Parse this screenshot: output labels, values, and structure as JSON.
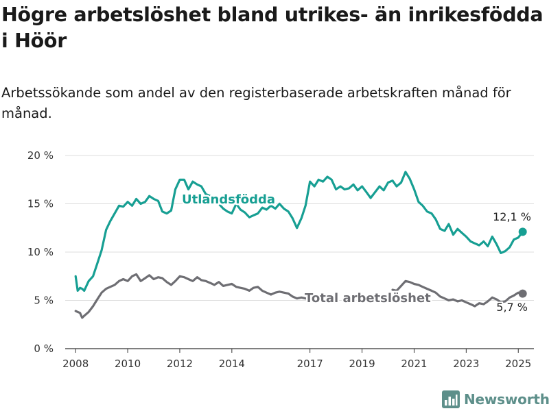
{
  "title": "Högre arbetslöshet bland utrikes- än inrikesfödda i Höör",
  "subtitle": "Arbetssökande som andel av den registerbaserade arbetskraften månad för månad.",
  "logo_text": "Newsworthy",
  "colors": {
    "utland": "#179f93",
    "total": "#6e6e73",
    "grid": "#dcdcdc",
    "axis": "#333333"
  },
  "chart_data": {
    "type": "line",
    "title": "Högre arbetslöshet bland utrikes- än inrikesfödda i Höör",
    "ylabel": "",
    "xlabel": "",
    "ylim": [
      0,
      20
    ],
    "xlim": [
      2007.6,
      2025.6
    ],
    "y_ticks": [
      0,
      5,
      10,
      15,
      20
    ],
    "y_tick_labels": [
      "0 %",
      "5 %",
      "10 %",
      "15 %",
      "20 %"
    ],
    "x_ticks": [
      2008,
      2010,
      2012,
      2014,
      2017,
      2019,
      2021,
      2023,
      2025
    ],
    "x_tick_labels": [
      "2008",
      "2010",
      "2012",
      "2014",
      "2017",
      "2019",
      "2021",
      "2023",
      "2025"
    ],
    "grid": true,
    "series": [
      {
        "name": "Utlandsfödda",
        "end_label": "12,1 %",
        "points": [
          [
            2008.0,
            7.5
          ],
          [
            2008.08,
            6.0
          ],
          [
            2008.17,
            6.3
          ],
          [
            2008.25,
            6.2
          ],
          [
            2008.33,
            6.0
          ],
          [
            2008.5,
            7.0
          ],
          [
            2008.67,
            7.5
          ],
          [
            2008.83,
            8.8
          ],
          [
            2009.0,
            10.2
          ],
          [
            2009.17,
            12.3
          ],
          [
            2009.33,
            13.2
          ],
          [
            2009.5,
            14.0
          ],
          [
            2009.67,
            14.8
          ],
          [
            2009.83,
            14.7
          ],
          [
            2010.0,
            15.2
          ],
          [
            2010.17,
            14.8
          ],
          [
            2010.33,
            15.5
          ],
          [
            2010.5,
            15.0
          ],
          [
            2010.67,
            15.2
          ],
          [
            2010.83,
            15.8
          ],
          [
            2011.0,
            15.5
          ],
          [
            2011.17,
            15.3
          ],
          [
            2011.33,
            14.2
          ],
          [
            2011.5,
            14.0
          ],
          [
            2011.67,
            14.3
          ],
          [
            2011.83,
            16.5
          ],
          [
            2012.0,
            17.5
          ],
          [
            2012.17,
            17.5
          ],
          [
            2012.33,
            16.5
          ],
          [
            2012.5,
            17.3
          ],
          [
            2012.67,
            17.0
          ],
          [
            2012.83,
            16.8
          ],
          [
            2013.0,
            16.0
          ],
          [
            2013.17,
            15.8
          ],
          [
            2013.33,
            15.2
          ],
          [
            2013.5,
            15.0
          ],
          [
            2013.67,
            14.5
          ],
          [
            2013.83,
            14.2
          ],
          [
            2014.0,
            14.0
          ],
          [
            2014.17,
            15.0
          ],
          [
            2014.33,
            14.4
          ],
          [
            2014.5,
            14.1
          ],
          [
            2014.67,
            13.6
          ],
          [
            2014.83,
            13.8
          ],
          [
            2015.0,
            14.0
          ],
          [
            2015.17,
            14.6
          ],
          [
            2015.33,
            14.4
          ],
          [
            2015.5,
            14.8
          ],
          [
            2015.67,
            14.5
          ],
          [
            2015.83,
            15.0
          ],
          [
            2016.0,
            14.5
          ],
          [
            2016.17,
            14.2
          ],
          [
            2016.33,
            13.5
          ],
          [
            2016.5,
            12.5
          ],
          [
            2016.67,
            13.5
          ],
          [
            2016.83,
            14.8
          ],
          [
            2017.0,
            17.3
          ],
          [
            2017.17,
            16.8
          ],
          [
            2017.33,
            17.5
          ],
          [
            2017.5,
            17.3
          ],
          [
            2017.67,
            17.8
          ],
          [
            2017.83,
            17.5
          ],
          [
            2018.0,
            16.5
          ],
          [
            2018.17,
            16.8
          ],
          [
            2018.33,
            16.5
          ],
          [
            2018.5,
            16.6
          ],
          [
            2018.67,
            17.0
          ],
          [
            2018.83,
            16.4
          ],
          [
            2019.0,
            16.8
          ],
          [
            2019.17,
            16.2
          ],
          [
            2019.33,
            15.6
          ],
          [
            2019.5,
            16.2
          ],
          [
            2019.67,
            16.8
          ],
          [
            2019.83,
            16.4
          ],
          [
            2020.0,
            17.2
          ],
          [
            2020.17,
            17.4
          ],
          [
            2020.33,
            16.8
          ],
          [
            2020.5,
            17.2
          ],
          [
            2020.67,
            18.3
          ],
          [
            2020.83,
            17.6
          ],
          [
            2021.0,
            16.5
          ],
          [
            2021.17,
            15.2
          ],
          [
            2021.33,
            14.8
          ],
          [
            2021.5,
            14.2
          ],
          [
            2021.67,
            14.0
          ],
          [
            2021.83,
            13.4
          ],
          [
            2022.0,
            12.4
          ],
          [
            2022.17,
            12.2
          ],
          [
            2022.33,
            12.9
          ],
          [
            2022.5,
            11.8
          ],
          [
            2022.67,
            12.4
          ],
          [
            2022.83,
            12.0
          ],
          [
            2023.0,
            11.6
          ],
          [
            2023.17,
            11.1
          ],
          [
            2023.33,
            10.9
          ],
          [
            2023.5,
            10.7
          ],
          [
            2023.67,
            11.1
          ],
          [
            2023.83,
            10.6
          ],
          [
            2024.0,
            11.6
          ],
          [
            2024.17,
            10.8
          ],
          [
            2024.33,
            9.9
          ],
          [
            2024.5,
            10.1
          ],
          [
            2024.67,
            10.5
          ],
          [
            2024.83,
            11.3
          ],
          [
            2025.0,
            11.5
          ],
          [
            2025.17,
            12.1
          ]
        ]
      },
      {
        "name": "Total arbetslöshet",
        "end_label": "5,7 %",
        "points": [
          [
            2008.0,
            3.9
          ],
          [
            2008.08,
            3.8
          ],
          [
            2008.17,
            3.7
          ],
          [
            2008.25,
            3.2
          ],
          [
            2008.33,
            3.4
          ],
          [
            2008.5,
            3.8
          ],
          [
            2008.67,
            4.4
          ],
          [
            2008.83,
            5.1
          ],
          [
            2009.0,
            5.8
          ],
          [
            2009.17,
            6.2
          ],
          [
            2009.33,
            6.4
          ],
          [
            2009.5,
            6.6
          ],
          [
            2009.67,
            7.0
          ],
          [
            2009.83,
            7.2
          ],
          [
            2010.0,
            7.0
          ],
          [
            2010.17,
            7.5
          ],
          [
            2010.33,
            7.7
          ],
          [
            2010.5,
            7.0
          ],
          [
            2010.67,
            7.3
          ],
          [
            2010.83,
            7.6
          ],
          [
            2011.0,
            7.2
          ],
          [
            2011.17,
            7.4
          ],
          [
            2011.33,
            7.3
          ],
          [
            2011.5,
            6.9
          ],
          [
            2011.67,
            6.6
          ],
          [
            2011.83,
            7.0
          ],
          [
            2012.0,
            7.5
          ],
          [
            2012.17,
            7.4
          ],
          [
            2012.33,
            7.2
          ],
          [
            2012.5,
            7.0
          ],
          [
            2012.67,
            7.4
          ],
          [
            2012.83,
            7.1
          ],
          [
            2013.0,
            7.0
          ],
          [
            2013.17,
            6.8
          ],
          [
            2013.33,
            6.6
          ],
          [
            2013.5,
            6.9
          ],
          [
            2013.67,
            6.5
          ],
          [
            2013.83,
            6.6
          ],
          [
            2014.0,
            6.7
          ],
          [
            2014.17,
            6.4
          ],
          [
            2014.33,
            6.3
          ],
          [
            2014.5,
            6.2
          ],
          [
            2014.67,
            6.0
          ],
          [
            2014.83,
            6.3
          ],
          [
            2015.0,
            6.4
          ],
          [
            2015.17,
            6.0
          ],
          [
            2015.33,
            5.8
          ],
          [
            2015.5,
            5.6
          ],
          [
            2015.67,
            5.8
          ],
          [
            2015.83,
            5.9
          ],
          [
            2016.0,
            5.8
          ],
          [
            2016.17,
            5.7
          ],
          [
            2016.33,
            5.4
          ],
          [
            2016.5,
            5.2
          ],
          [
            2016.67,
            5.3
          ],
          [
            2016.83,
            5.2
          ]
        ]
      },
      {
        "name": "",
        "points": [
          [
            2020.17,
            6.1
          ],
          [
            2020.33,
            6.0
          ],
          [
            2020.5,
            6.5
          ],
          [
            2020.67,
            7.0
          ],
          [
            2020.83,
            6.9
          ],
          [
            2021.0,
            6.7
          ],
          [
            2021.17,
            6.6
          ],
          [
            2021.33,
            6.4
          ],
          [
            2021.5,
            6.2
          ],
          [
            2021.67,
            6.0
          ],
          [
            2021.83,
            5.8
          ],
          [
            2022.0,
            5.4
          ],
          [
            2022.17,
            5.2
          ],
          [
            2022.33,
            5.0
          ],
          [
            2022.5,
            5.1
          ],
          [
            2022.67,
            4.9
          ],
          [
            2022.83,
            5.0
          ],
          [
            2023.0,
            4.8
          ],
          [
            2023.17,
            4.6
          ],
          [
            2023.33,
            4.4
          ],
          [
            2023.5,
            4.7
          ],
          [
            2023.67,
            4.6
          ],
          [
            2023.83,
            4.9
          ],
          [
            2024.0,
            5.3
          ],
          [
            2024.17,
            5.1
          ],
          [
            2024.33,
            4.8
          ],
          [
            2024.5,
            4.9
          ],
          [
            2024.67,
            5.3
          ],
          [
            2024.83,
            5.5
          ],
          [
            2025.0,
            5.8
          ],
          [
            2025.17,
            5.7
          ]
        ]
      }
    ]
  }
}
